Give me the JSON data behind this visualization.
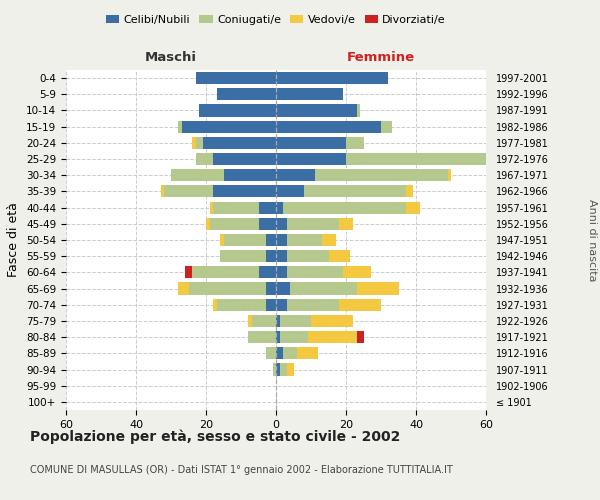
{
  "age_groups": [
    "100+",
    "95-99",
    "90-94",
    "85-89",
    "80-84",
    "75-79",
    "70-74",
    "65-69",
    "60-64",
    "55-59",
    "50-54",
    "45-49",
    "40-44",
    "35-39",
    "30-34",
    "25-29",
    "20-24",
    "15-19",
    "10-14",
    "5-9",
    "0-4"
  ],
  "birth_years": [
    "≤ 1901",
    "1902-1906",
    "1907-1911",
    "1912-1916",
    "1917-1921",
    "1922-1926",
    "1927-1931",
    "1932-1936",
    "1937-1941",
    "1942-1946",
    "1947-1951",
    "1952-1956",
    "1957-1961",
    "1962-1966",
    "1967-1971",
    "1972-1976",
    "1977-1981",
    "1982-1986",
    "1987-1991",
    "1992-1996",
    "1997-2001"
  ],
  "maschi": {
    "celibi": [
      0,
      0,
      0,
      0,
      0,
      0,
      3,
      3,
      5,
      3,
      3,
      5,
      5,
      18,
      15,
      18,
      21,
      27,
      22,
      17,
      23
    ],
    "coniugati": [
      0,
      0,
      1,
      3,
      8,
      7,
      14,
      22,
      19,
      13,
      12,
      14,
      13,
      14,
      15,
      5,
      2,
      1,
      0,
      0,
      0
    ],
    "vedovi": [
      0,
      0,
      0,
      0,
      0,
      1,
      1,
      3,
      0,
      0,
      1,
      1,
      1,
      1,
      0,
      0,
      1,
      0,
      0,
      0,
      0
    ],
    "divorziati": [
      0,
      0,
      0,
      0,
      0,
      0,
      0,
      0,
      2,
      0,
      0,
      0,
      0,
      0,
      0,
      0,
      0,
      0,
      0,
      0,
      0
    ]
  },
  "femmine": {
    "nubili": [
      0,
      0,
      1,
      2,
      1,
      1,
      3,
      4,
      3,
      3,
      3,
      3,
      2,
      8,
      11,
      20,
      20,
      30,
      23,
      19,
      32
    ],
    "coniugate": [
      0,
      0,
      2,
      4,
      8,
      9,
      15,
      19,
      16,
      12,
      10,
      15,
      35,
      29,
      38,
      42,
      5,
      3,
      1,
      0,
      0
    ],
    "vedove": [
      0,
      0,
      2,
      6,
      14,
      12,
      12,
      12,
      8,
      6,
      4,
      4,
      4,
      2,
      1,
      0,
      0,
      0,
      0,
      0,
      0
    ],
    "divorziate": [
      0,
      0,
      0,
      0,
      2,
      0,
      0,
      0,
      0,
      0,
      0,
      0,
      0,
      0,
      0,
      0,
      0,
      0,
      0,
      0,
      0
    ]
  },
  "colors": {
    "celibi": "#3b6ea5",
    "coniugati": "#b5c98e",
    "vedovi": "#f5c842",
    "divorziati": "#cc2222"
  },
  "xlim": 60,
  "title": "Popolazione per età, sesso e stato civile - 2002",
  "subtitle": "COMUNE DI MASULLAS (OR) - Dati ISTAT 1° gennaio 2002 - Elaborazione TUTTITALIA.IT",
  "ylabel": "Fasce di età",
  "ylabel_right": "Anni di nascita",
  "bg_color": "#f0f0eb",
  "plot_bg": "#ffffff",
  "grid_color": "#cccccc"
}
